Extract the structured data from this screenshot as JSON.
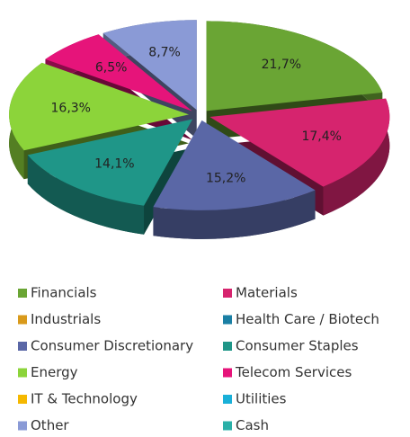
{
  "chart_data": {
    "type": "pie3d",
    "categories": [
      "Financials",
      "Materials",
      "Industrials",
      "Health Care / Biotech",
      "Consumer Discretionary",
      "Consumer Staples",
      "Energy",
      "Telecom Services",
      "IT & Technology",
      "Utilities",
      "Other",
      "Cash"
    ],
    "values": [
      21.7,
      17.4,
      0,
      0,
      15.2,
      14.1,
      16.3,
      6.5,
      0,
      0,
      8.7,
      0
    ],
    "value_labels": [
      "21,7%",
      "17,4%",
      null,
      null,
      "15,2%",
      "14,1%",
      "16,3%",
      "6,5%",
      null,
      null,
      "8,7%",
      null
    ],
    "colors": [
      "#6aa534",
      "#d6246e",
      "#d99a1b",
      "#1a7fa4",
      "#5a67a6",
      "#1f9688",
      "#8cd43a",
      "#e6147a",
      "#f5b800",
      "#1ab0d8",
      "#8a9ad6",
      "#2ab0a8"
    ],
    "legend": "bottom"
  }
}
